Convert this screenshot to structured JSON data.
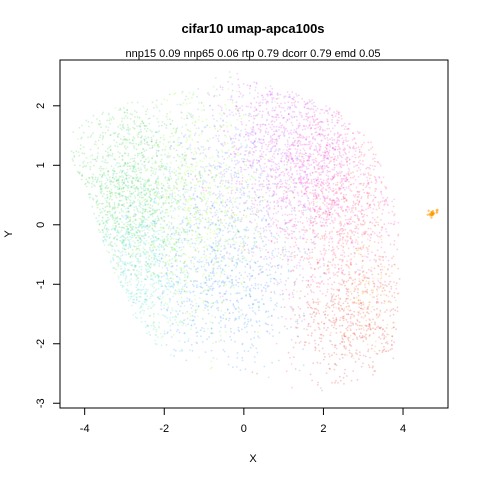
{
  "chart_data": {
    "type": "scatter",
    "title": "cifar10 umap-apca100s",
    "subtitle": "nnp15 0.09 nnp65 0.06 rtp 0.79 dcorr 0.79 emd 0.05",
    "xlabel": "X",
    "ylabel": "Y",
    "xlim": [
      -4.62,
      5.13
    ],
    "ylim": [
      -3.08,
      2.77
    ],
    "xticks": [
      -4,
      -2,
      0,
      2,
      4
    ],
    "yticks": [
      -3,
      -2,
      -1,
      0,
      1,
      2
    ],
    "xtick_labels": [
      "-4",
      "-2",
      "0",
      "2",
      "4"
    ],
    "ytick_labels": [
      "-3",
      "-2",
      "-1",
      "0",
      "1",
      "2"
    ],
    "grid": false,
    "legend": "none",
    "clusters": [
      {
        "color": "#2ecc40",
        "cx": -3.0,
        "cy": 0.6,
        "sx": 0.8,
        "sy": 0.8,
        "n": 1100
      },
      {
        "color": "#40e0d0",
        "cx": -2.6,
        "cy": -0.6,
        "sx": 0.7,
        "sy": 0.9,
        "n": 800
      },
      {
        "color": "#7fff00",
        "cx": -1.2,
        "cy": 0.2,
        "sx": 1.0,
        "sy": 1.0,
        "n": 800
      },
      {
        "color": "#6a8cff",
        "cx": -0.4,
        "cy": 0.6,
        "sx": 1.0,
        "sy": 0.9,
        "n": 700
      },
      {
        "color": "#2288ff",
        "cx": -0.4,
        "cy": -1.0,
        "sx": 1.0,
        "sy": 0.7,
        "n": 700
      },
      {
        "color": "#ff33cc",
        "cx": 1.9,
        "cy": 0.8,
        "sx": 1.0,
        "sy": 1.0,
        "n": 1100
      },
      {
        "color": "#cc33ff",
        "cx": 1.2,
        "cy": 1.4,
        "sx": 0.9,
        "sy": 0.7,
        "n": 700
      },
      {
        "color": "#ff3333",
        "cx": 2.6,
        "cy": 0.1,
        "sx": 0.8,
        "sy": 1.0,
        "n": 650
      },
      {
        "color": "#dd2222",
        "cx": 2.8,
        "cy": -1.7,
        "sx": 0.8,
        "sy": 0.5,
        "n": 450
      },
      {
        "color": "#ff9900",
        "cx": 3.0,
        "cy": -1.2,
        "sx": 0.5,
        "sy": 0.5,
        "n": 150
      },
      {
        "color": "#ff9900",
        "cx": 4.75,
        "cy": 0.18,
        "sx": 0.06,
        "sy": 0.04,
        "n": 25
      }
    ]
  }
}
